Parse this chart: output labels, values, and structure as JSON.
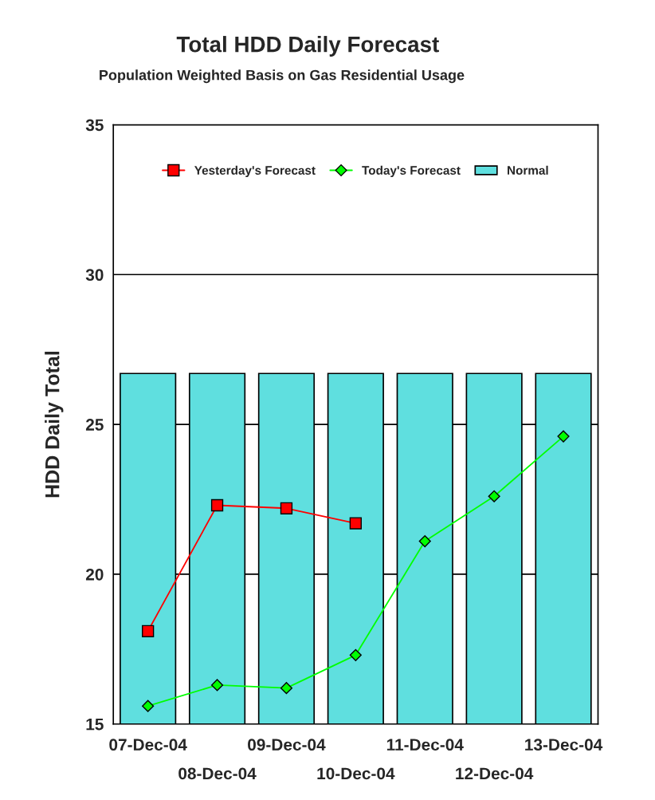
{
  "chart_data": {
    "type": "bar",
    "title": "Total HDD Daily Forecast",
    "subtitle": "Population Weighted Basis on Gas Residential Usage",
    "ylabel": "HDD Daily Total",
    "categories": [
      "07-Dec-04",
      "08-Dec-04",
      "09-Dec-04",
      "10-Dec-04",
      "11-Dec-04",
      "12-Dec-04",
      "13-Dec-04"
    ],
    "series": [
      {
        "name": "Yesterday's Forecast",
        "type": "line",
        "color": "#ff0000",
        "marker": "square",
        "values": [
          18.1,
          22.3,
          22.2,
          21.7,
          null,
          null,
          null
        ]
      },
      {
        "name": "Today's Forecast",
        "type": "line",
        "color": "#00ff00",
        "marker": "diamond",
        "values": [
          15.6,
          16.3,
          16.2,
          17.3,
          21.1,
          22.6,
          24.6
        ]
      },
      {
        "name": "Normal",
        "color": "#5fdfdf",
        "values": [
          26.7,
          26.7,
          26.7,
          26.7,
          26.7,
          26.7,
          26.7
        ]
      }
    ],
    "ylim": [
      15,
      35
    ],
    "yticks": [
      15,
      20,
      25,
      30,
      35
    ],
    "grid": "y",
    "legend": "top"
  }
}
